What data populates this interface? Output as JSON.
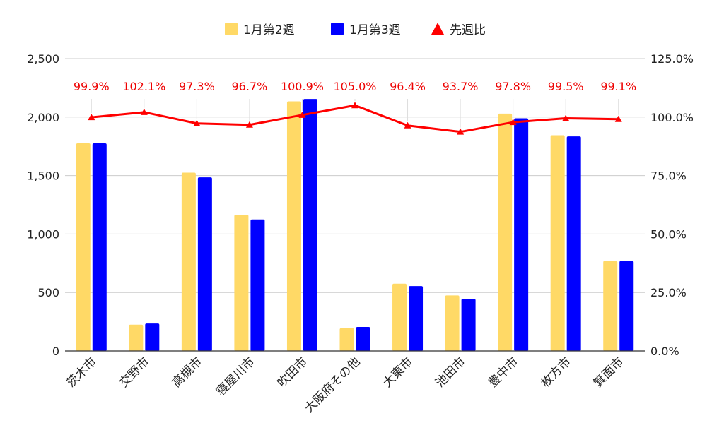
{
  "chart_data": {
    "type": "bar",
    "categories": [
      "茨木市",
      "交野市",
      "高槻市",
      "寝屋川市",
      "吹田市",
      "大阪府その他",
      "大東市",
      "池田市",
      "豊中市",
      "枚方市",
      "箕面市"
    ],
    "series": [
      {
        "name": "1月第2週",
        "type": "bar",
        "axis": "left",
        "color": "#ffd966",
        "values": [
          1775,
          225,
          1525,
          1165,
          2135,
          195,
          575,
          475,
          2030,
          1845,
          770
        ]
      },
      {
        "name": "1月第3週",
        "type": "bar",
        "axis": "left",
        "color": "#0000ff",
        "values": [
          1775,
          235,
          1485,
          1125,
          2155,
          205,
          555,
          445,
          1990,
          1835,
          770
        ]
      },
      {
        "name": "先週比",
        "type": "line",
        "axis": "right",
        "color": "#ff0000",
        "values": [
          99.9,
          102.1,
          97.3,
          96.7,
          100.9,
          105.0,
          96.4,
          93.7,
          97.8,
          99.5,
          99.1
        ],
        "labels": [
          "99.9%",
          "102.1%",
          "97.3%",
          "96.7%",
          "100.9%",
          "105.0%",
          "96.4%",
          "93.7%",
          "97.8%",
          "99.5%",
          "99.1%"
        ]
      }
    ],
    "y_left": {
      "min": 0,
      "max": 2500,
      "ticks": [
        0,
        500,
        1000,
        1500,
        2000,
        2500
      ],
      "tick_labels": [
        "0",
        "500",
        "1,000",
        "1,500",
        "2,000",
        "2,500"
      ]
    },
    "y_right": {
      "min": 0,
      "max": 125,
      "ticks": [
        0,
        25,
        50,
        75,
        100,
        125
      ],
      "tick_labels": [
        "0.0%",
        "25.0%",
        "50.0%",
        "75.0%",
        "100.0%",
        "125.0%"
      ]
    },
    "grid": true,
    "legend_position": "top-center"
  }
}
